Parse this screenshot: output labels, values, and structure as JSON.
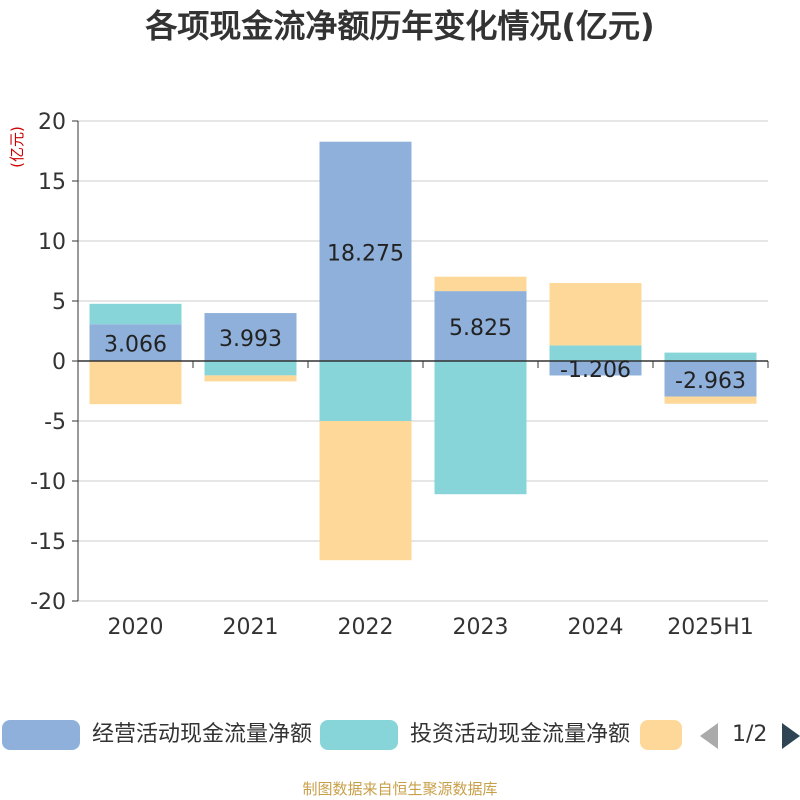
{
  "chart_data": {
    "type": "bar",
    "title": "各项现金流净额历年变化情况(亿元)",
    "unit_label": "(亿元)",
    "categories": [
      "2020",
      "2021",
      "2022",
      "2023",
      "2024",
      "2025H1"
    ],
    "ylim": [
      -20,
      20
    ],
    "yticks": [
      20,
      15,
      10,
      5,
      0,
      -5,
      -10,
      -15,
      -20
    ],
    "grid": true,
    "stacked": true,
    "legend_position": "bottom",
    "series": [
      {
        "name": "经营活动现金流量净额",
        "color": "#8eb0da",
        "values": [
          3.066,
          3.993,
          18.275,
          5.825,
          -1.206,
          -2.963
        ]
      },
      {
        "name": "投资活动现金流量净额",
        "color": "#87d5d8",
        "values": [
          1.7,
          -1.2,
          -5.0,
          -11.1,
          1.3,
          0.7
        ]
      },
      {
        "name": "",
        "color": "#fdd898",
        "values": [
          -3.6,
          -0.5,
          -11.6,
          1.2,
          5.2,
          -0.6
        ]
      }
    ],
    "data_labels": [
      "3.066",
      "3.993",
      "18.275",
      "5.825",
      "-1.206",
      "-2.963"
    ]
  },
  "legend": {
    "items": [
      "经营活动现金流量净额",
      "投资活动现金流量净额",
      ""
    ],
    "page": "1/2"
  },
  "footer": "制图数据来自恒生聚源数据库"
}
